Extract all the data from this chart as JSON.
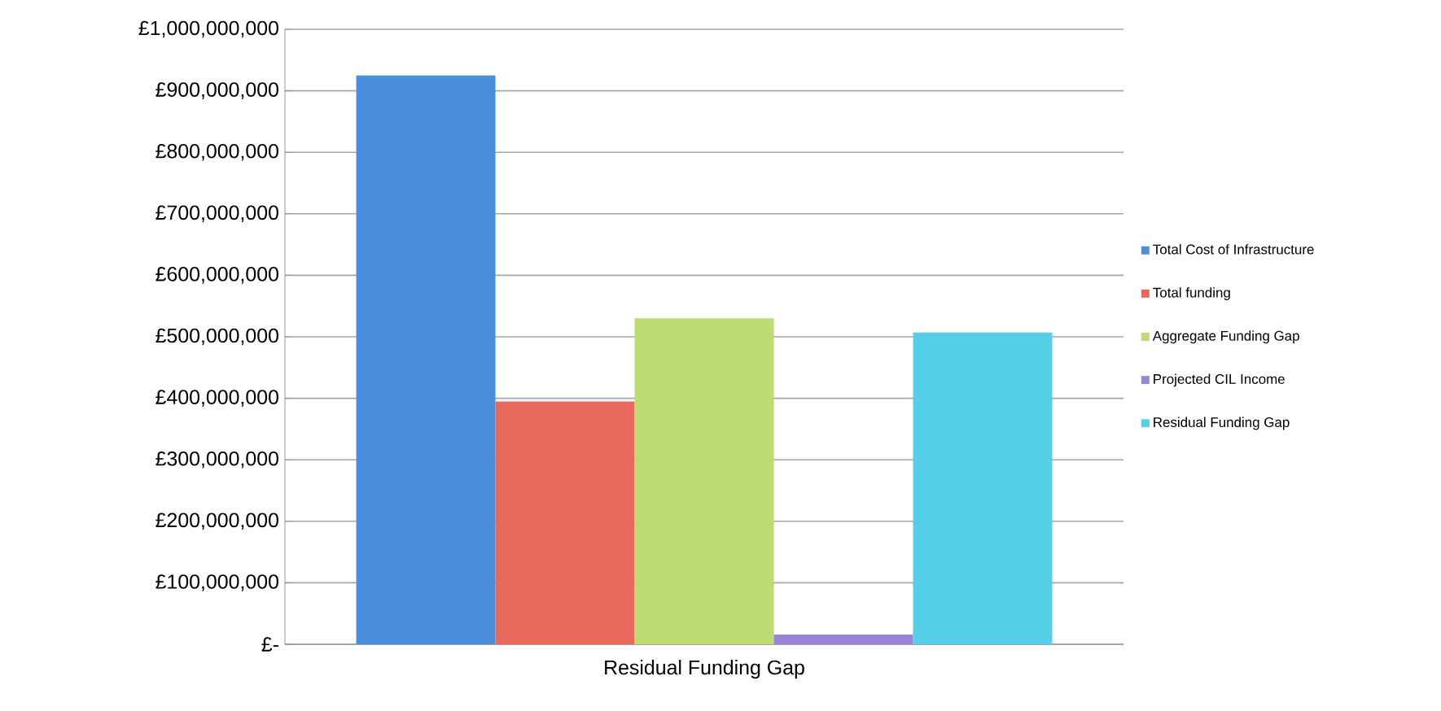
{
  "chart_data": {
    "type": "bar",
    "categories": [
      "Residual Funding Gap"
    ],
    "series": [
      {
        "name": "Total Cost of Infrastructure",
        "color": "#4a8fdc",
        "values": [
          925000000
        ]
      },
      {
        "name": "Total funding",
        "color": "#e9685c",
        "values": [
          395000000
        ]
      },
      {
        "name": "Aggregate Funding Gap",
        "color": "#bcdb72",
        "values": [
          530000000
        ]
      },
      {
        "name": "Projected CIL Income",
        "color": "#9a84d4",
        "values": [
          16000000
        ]
      },
      {
        "name": "Residual Funding Gap",
        "color": "#55cfe8",
        "values": [
          507000000
        ]
      }
    ],
    "ylim": [
      0,
      1000000000
    ],
    "yticks": [
      {
        "value": 0,
        "label": "£-"
      },
      {
        "value": 100000000,
        "label": "£100,000,000"
      },
      {
        "value": 200000000,
        "label": "£200,000,000"
      },
      {
        "value": 300000000,
        "label": "£300,000,000"
      },
      {
        "value": 400000000,
        "label": "£400,000,000"
      },
      {
        "value": 500000000,
        "label": "£500,000,000"
      },
      {
        "value": 600000000,
        "label": "£600,000,000"
      },
      {
        "value": 700000000,
        "label": "£700,000,000"
      },
      {
        "value": 800000000,
        "label": "£800,000,000"
      },
      {
        "value": 900000000,
        "label": "£900,000,000"
      },
      {
        "value": 1000000000,
        "label": "£1,000,000,000"
      }
    ],
    "grid": "y",
    "legend": "right"
  }
}
